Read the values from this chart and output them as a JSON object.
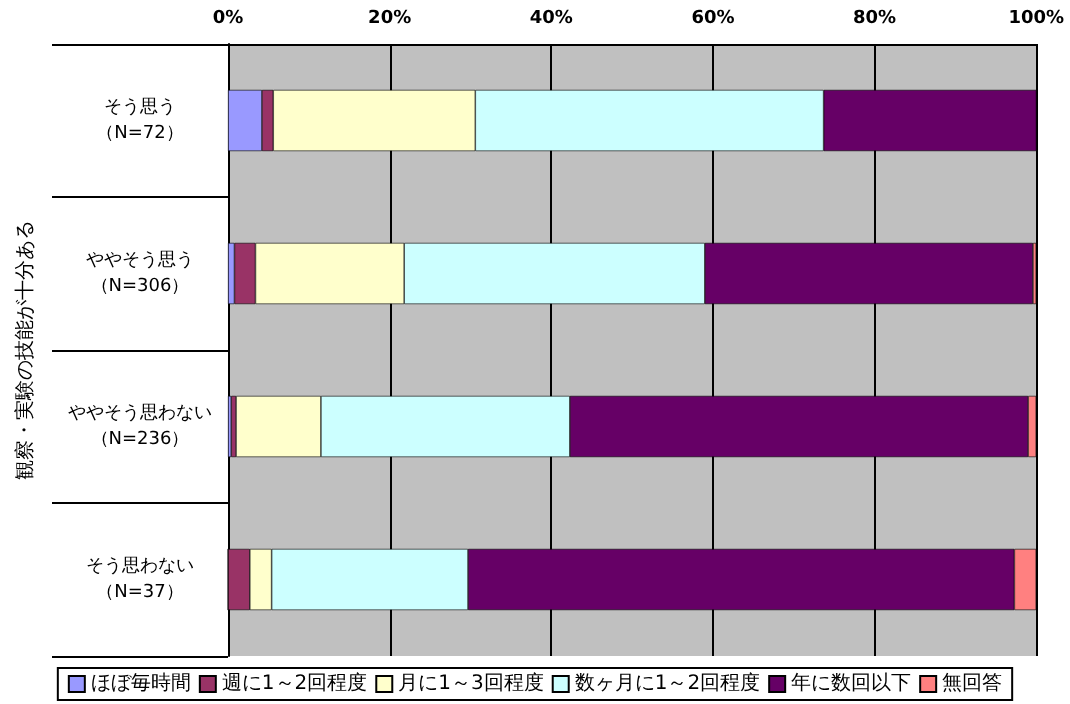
{
  "chart_data": {
    "type": "bar",
    "orientation": "horizontal",
    "stacked": true,
    "ylabel": "観察・実験の技能が十分ある",
    "categories": [
      "そう思う（N=72）",
      "ややそう思う（N=306）",
      "ややそう思わない（N=236）",
      "そう思わない（N=37）"
    ],
    "series": [
      {
        "name": "ほぼ毎時間",
        "color": "#9999ff",
        "values": [
          4.2,
          0.8,
          0.4,
          0
        ]
      },
      {
        "name": "週に1～2回程度",
        "color": "#993366",
        "values": [
          1.4,
          2.6,
          0.6,
          2.7
        ]
      },
      {
        "name": "月に1～3回程度",
        "color": "#ffffcc",
        "values": [
          25.0,
          18.4,
          10.5,
          2.7
        ]
      },
      {
        "name": "数ヶ月に1～2回程度",
        "color": "#ccffff",
        "values": [
          43.1,
          37.2,
          30.8,
          24.3
        ]
      },
      {
        "name": "年に数回以下",
        "color": "#660066",
        "values": [
          26.4,
          40.6,
          56.7,
          67.6
        ]
      },
      {
        "name": "無回答",
        "color": "#ff8080",
        "values": [
          0,
          0.4,
          1.0,
          2.7
        ]
      }
    ],
    "xlim": [
      0,
      100
    ],
    "xticks": [
      {
        "value": 0,
        "label": "0%"
      },
      {
        "value": 20,
        "label": "20%"
      },
      {
        "value": 40,
        "label": "40%"
      },
      {
        "value": 60,
        "label": "60%"
      },
      {
        "value": 80,
        "label": "80%"
      },
      {
        "value": 100,
        "label": "100%"
      }
    ],
    "grid": "x",
    "legend": "bottom"
  }
}
